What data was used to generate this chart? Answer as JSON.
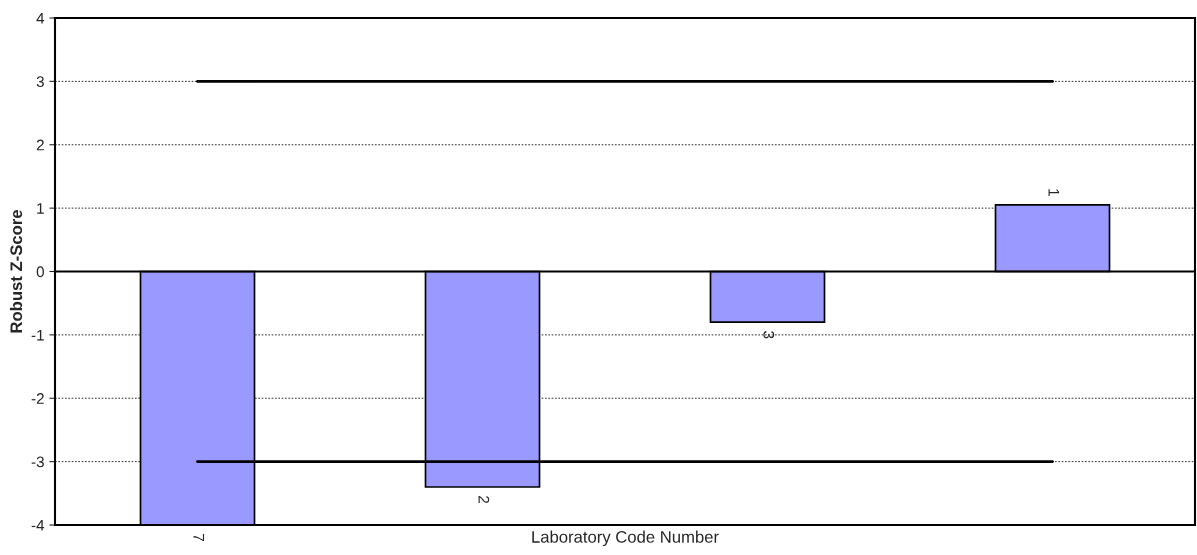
{
  "chart_data": {
    "type": "bar",
    "xlabel": "Laboratory Code Number",
    "ylabel": "Robust Z-Score",
    "categories": [
      "7",
      "2",
      "3",
      "1"
    ],
    "series": [
      {
        "color": "#9999ff",
        "values": [
          -4,
          -3.4,
          -0.8,
          1.05
        ]
      },
      {
        "type": "line",
        "color": "#000000",
        "values": [
          3,
          3,
          3,
          3
        ]
      },
      {
        "type": "line",
        "color": "#000000",
        "values": [
          -3,
          -3,
          -3,
          -3
        ]
      }
    ],
    "ylim": [
      -4,
      4
    ],
    "yticks": [
      -4,
      -3,
      -2,
      -1,
      0,
      1,
      2,
      3,
      4
    ],
    "grid": "y",
    "marker": "none",
    "line_style": "solid"
  }
}
